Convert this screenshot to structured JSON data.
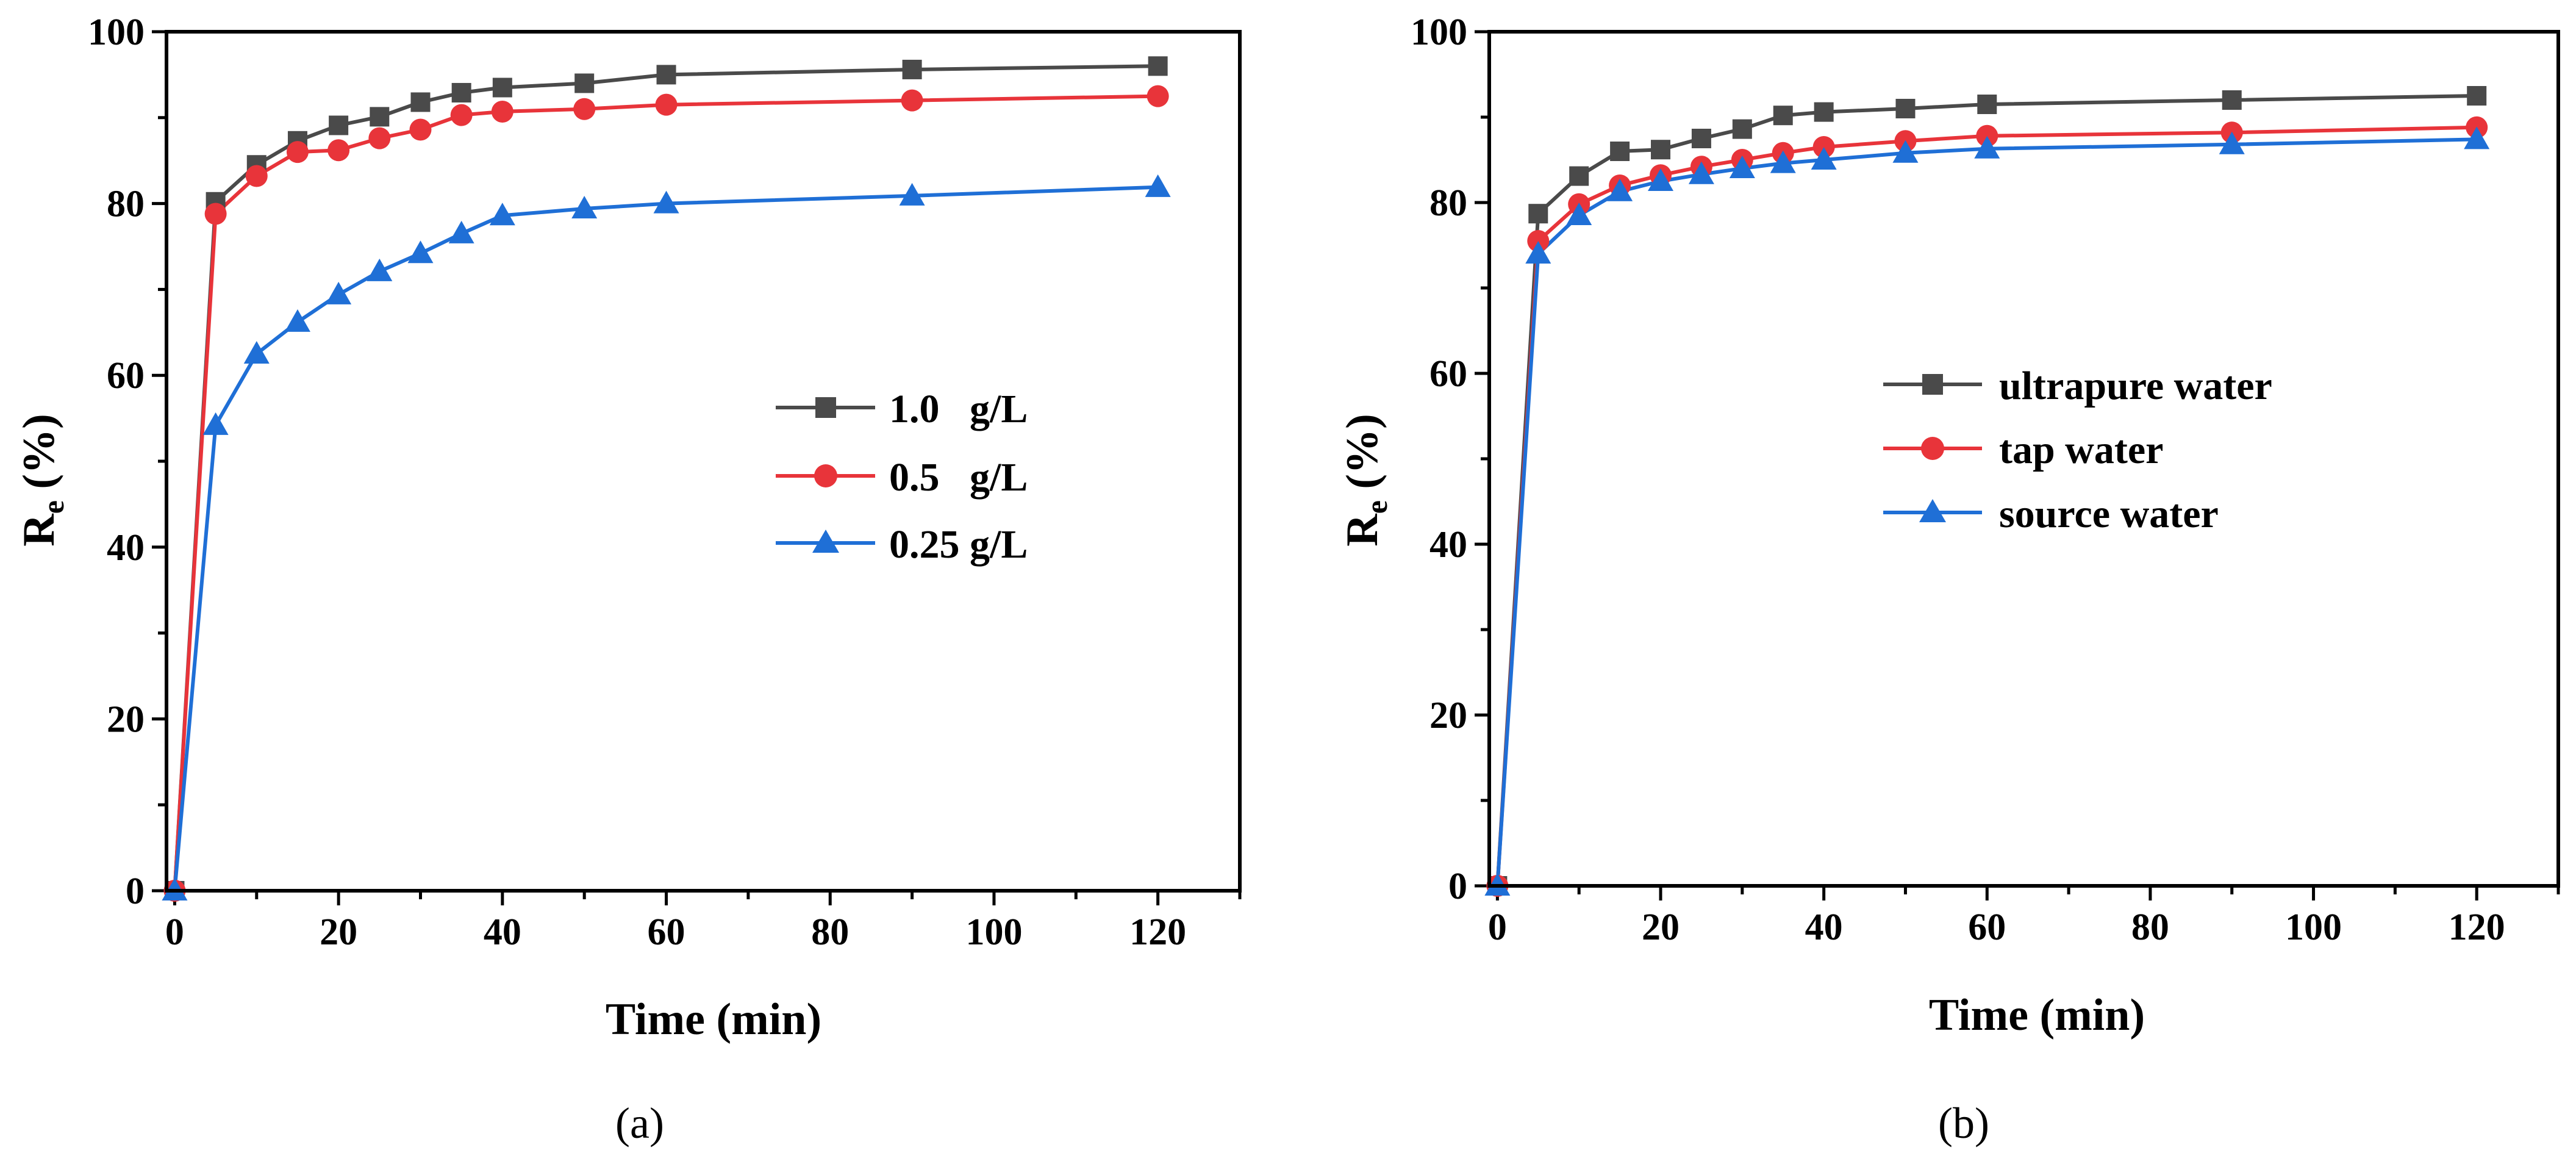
{
  "chart_data": [
    {
      "type": "line",
      "panel": "a",
      "caption": "(a)",
      "xlabel": "Time (min)",
      "ylabel_main": "R",
      "ylabel_sub": "e",
      "ylabel_tail": " (%)",
      "xlim": [
        -1,
        130
      ],
      "ylim": [
        0,
        100
      ],
      "xticks": [
        0,
        20,
        40,
        60,
        80,
        100,
        120
      ],
      "yticks": [
        0,
        20,
        40,
        60,
        80,
        100
      ],
      "legend_position": "center-right",
      "x": [
        0,
        5,
        10,
        15,
        20,
        25,
        30,
        35,
        40,
        50,
        60,
        90,
        120
      ],
      "series": [
        {
          "name": "1.0   g/L",
          "color": "#4a4a4a",
          "marker": "square",
          "values": [
            0,
            80.2,
            84.5,
            87.3,
            89.1,
            90.1,
            91.8,
            92.9,
            93.5,
            94.0,
            95.0,
            95.6,
            96.0
          ]
        },
        {
          "name": "0.5   g/L",
          "color": "#e8343a",
          "marker": "circle",
          "values": [
            0,
            78.8,
            83.2,
            86.0,
            86.2,
            87.6,
            88.6,
            90.3,
            90.7,
            91.0,
            91.5,
            92.0,
            92.5
          ]
        },
        {
          "name": "0.25 g/L",
          "color": "#1f6fd6",
          "marker": "triangle",
          "values": [
            0,
            54.2,
            62.5,
            66.2,
            69.4,
            72.1,
            74.2,
            76.5,
            78.6,
            79.4,
            80.0,
            80.9,
            81.9
          ]
        }
      ]
    },
    {
      "type": "line",
      "panel": "b",
      "caption": "(b)",
      "xlabel": "Time (min)",
      "ylabel_main": "R",
      "ylabel_sub": "e",
      "ylabel_tail": " (%)",
      "xlim": [
        -1,
        130
      ],
      "ylim": [
        0,
        100
      ],
      "xticks": [
        0,
        20,
        40,
        60,
        80,
        100,
        120
      ],
      "yticks": [
        0,
        20,
        40,
        60,
        80,
        100
      ],
      "legend_position": "center-right",
      "x": [
        0,
        5,
        10,
        15,
        20,
        25,
        30,
        35,
        40,
        50,
        60,
        90,
        120
      ],
      "series": [
        {
          "name": "ultrapure water",
          "color": "#4a4a4a",
          "marker": "square",
          "values": [
            0,
            78.7,
            83.1,
            86.0,
            86.2,
            87.5,
            88.6,
            90.2,
            90.6,
            91.0,
            91.5,
            92.0,
            92.5
          ]
        },
        {
          "name": "tap water",
          "color": "#e8343a",
          "marker": "circle",
          "values": [
            0,
            75.5,
            79.8,
            82.0,
            83.2,
            84.2,
            85.0,
            85.8,
            86.5,
            87.2,
            87.8,
            88.2,
            88.8
          ]
        },
        {
          "name": "source water",
          "color": "#1f6fd6",
          "marker": "triangle",
          "values": [
            0,
            74.0,
            78.5,
            81.3,
            82.5,
            83.3,
            84.0,
            84.6,
            85.0,
            85.8,
            86.3,
            86.8,
            87.4
          ]
        }
      ]
    }
  ]
}
